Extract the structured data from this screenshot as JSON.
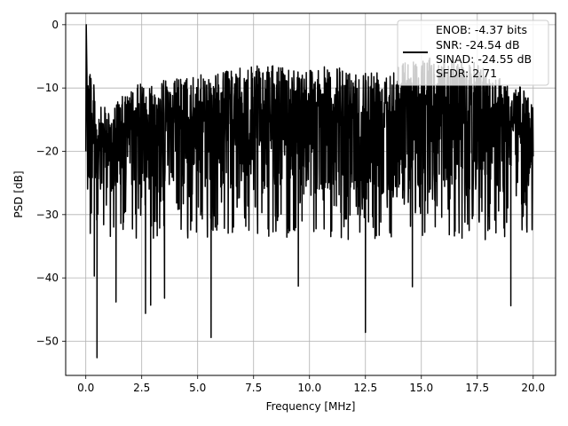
{
  "chart_data": {
    "type": "line",
    "xlabel": "Frequency [MHz]",
    "ylabel": "PSD [dB]",
    "xlim": [
      -0.9,
      21.0
    ],
    "ylim": [
      -55.4,
      1.8
    ],
    "x_ticks": [
      0.0,
      2.5,
      5.0,
      7.5,
      10.0,
      12.5,
      15.0,
      17.5,
      20.0
    ],
    "x_tick_labels": [
      "0.0",
      "2.5",
      "5.0",
      "7.5",
      "10.0",
      "12.5",
      "15.0",
      "17.5",
      "20.0"
    ],
    "y_ticks": [
      0,
      -10,
      -20,
      -30,
      -40,
      -50
    ],
    "y_tick_labels": [
      "0",
      "−10",
      "−20",
      "−30",
      "−40",
      "−50"
    ],
    "grid": true,
    "legend_position": "top-right",
    "series": [
      {
        "name": "ENOB: -4.37 bits\nSNR: -24.54 dB\nSINAD: -24.55 dB\nSFDR: 2.71",
        "color": "#000000",
        "description_points": {
          "peak": {
            "x": 0.02,
            "y": 0.0
          },
          "typical_band": [
            -30,
            -7
          ],
          "upper_envelope": {
            "x": [
              0.0,
              0.5,
              1.0,
              2.5,
              5.0,
              7.5,
              10.0,
              12.5,
              15.0,
              17.5,
              20.0
            ],
            "y": [
              0.0,
              -13,
              -13,
              -9,
              -8,
              -6.5,
              -6.5,
              -7,
              -5,
              -6,
              -11
            ]
          },
          "deep_notches": [
            {
              "x": 0.38,
              "y": -39.7
            },
            {
              "x": 0.5,
              "y": -52.6
            },
            {
              "x": 1.35,
              "y": -43.8
            },
            {
              "x": 2.67,
              "y": -45.6
            },
            {
              "x": 2.9,
              "y": -44.3
            },
            {
              "x": 3.52,
              "y": -43.2
            },
            {
              "x": 5.6,
              "y": -49.4
            },
            {
              "x": 9.5,
              "y": -41.3
            },
            {
              "x": 12.5,
              "y": -48.6
            },
            {
              "x": 14.6,
              "y": -41.4
            },
            {
              "x": 19.0,
              "y": -44.4
            }
          ],
          "end_value": {
            "x": 20.0,
            "y": -20.8
          }
        }
      }
    ]
  },
  "legend": {
    "lines": [
      "ENOB: -4.37 bits",
      "SNR: -24.54 dB",
      "SINAD: -24.55 dB",
      "SFDR: 2.71"
    ]
  }
}
